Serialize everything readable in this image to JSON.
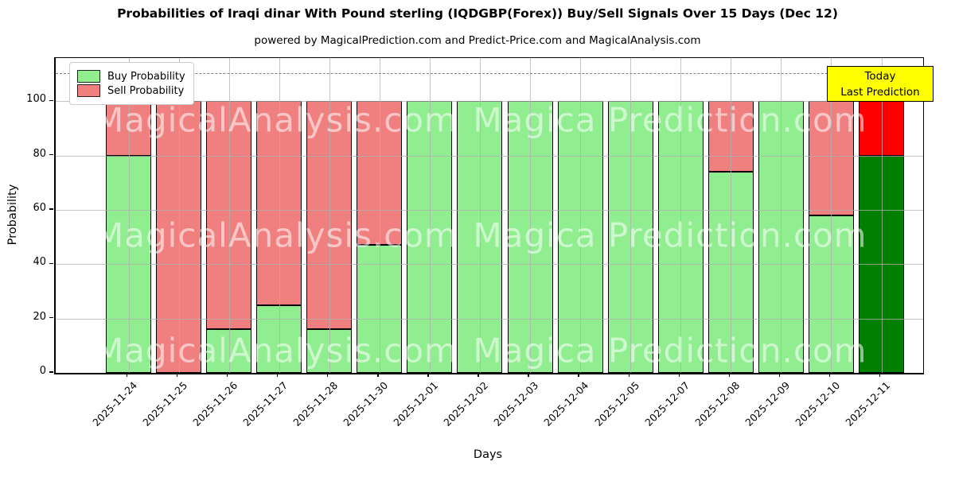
{
  "figure": {
    "title": "Probabilities of Iraqi dinar With Pound sterling (IQDGBP(Forex)) Buy/Sell Signals Over 15 Days (Dec 12)",
    "subtitle": "powered by MagicalPrediction.com and Predict-Price.com and MagicalAnalysis.com"
  },
  "legend": {
    "items": [
      {
        "label": "Buy Probability",
        "color": "#90ee90"
      },
      {
        "label": "Sell Probability",
        "color": "#f08080"
      }
    ]
  },
  "annotation": {
    "line1": "Today",
    "line2": "Last Prediction",
    "bg": "#ffff00"
  },
  "watermarks": {
    "left": "MagicalAnalysis.com",
    "right": "Magica Prediction.com"
  },
  "colors": {
    "buy": "#90ee90",
    "sell": "#f08080",
    "today_buy": "#008000",
    "today_sell": "#ff0000",
    "bar_edge": "#000000",
    "grid": "#b0b0b0",
    "dashed_line": "#7f7f7f",
    "annotation_bg": "#ffff00"
  },
  "chart_data": {
    "type": "bar",
    "stacked": true,
    "title": "Probabilities of Iraqi dinar With Pound sterling (IQDGBP(Forex)) Buy/Sell Signals Over 15 Days (Dec 12)",
    "xlabel": "Days",
    "ylabel": "Probability",
    "categories": [
      "2025-11-24",
      "2025-11-25",
      "2025-11-26",
      "2025-11-27",
      "2025-11-28",
      "2025-11-30",
      "2025-12-01",
      "2025-12-02",
      "2025-12-03",
      "2025-12-04",
      "2025-12-05",
      "2025-12-07",
      "2025-12-08",
      "2025-12-09",
      "2025-12-10",
      "2025-12-11"
    ],
    "series": [
      {
        "name": "Buy Probability",
        "values": [
          80,
          0,
          16,
          25,
          16,
          47,
          100,
          100,
          100,
          100,
          100,
          100,
          74,
          100,
          58,
          80
        ]
      },
      {
        "name": "Sell Probability",
        "values": [
          20,
          100,
          84,
          75,
          84,
          53,
          0,
          0,
          0,
          0,
          0,
          0,
          26,
          0,
          42,
          20
        ]
      }
    ],
    "today_index": 15,
    "yticks": [
      0,
      20,
      40,
      60,
      80,
      100
    ],
    "ylim": [
      0,
      116
    ],
    "dashed_hline": 110,
    "grid": true,
    "legend_position": "upper left"
  }
}
